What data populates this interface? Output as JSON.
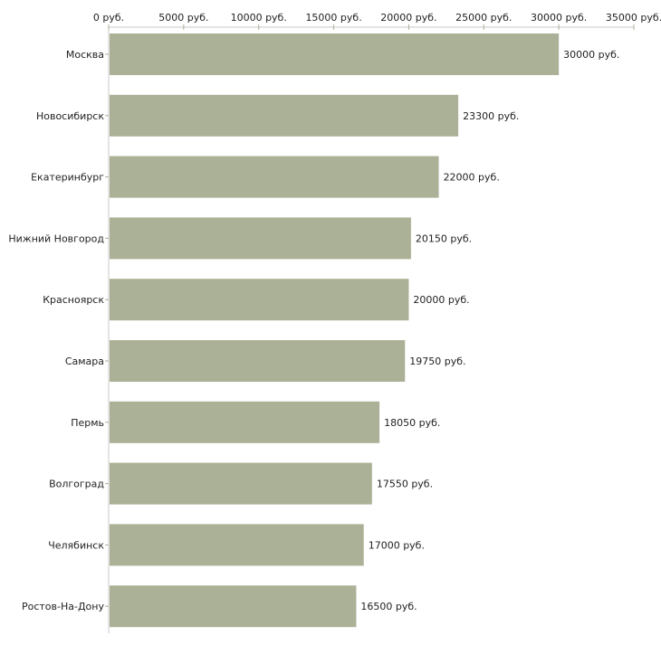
{
  "chart_data": {
    "type": "bar",
    "orientation": "horizontal",
    "title": "",
    "xlabel": "",
    "ylabel": "",
    "xlim": [
      0,
      35000
    ],
    "x_ticks": [
      0,
      5000,
      10000,
      15000,
      20000,
      25000,
      30000,
      35000
    ],
    "unit_suffix": " руб.",
    "grid": false,
    "axis_position": "top",
    "bar_color": "#abb197",
    "categories": [
      "Москва",
      "Новосибирск",
      "Екатеринбург",
      "Нижний Новгород",
      "Красноярск",
      "Самара",
      "Пермь",
      "Волгоград",
      "Челябинск",
      "Ростов-На-Дону"
    ],
    "values": [
      30000,
      23300,
      22000,
      20150,
      20000,
      19750,
      18050,
      17550,
      17000,
      16500
    ]
  }
}
